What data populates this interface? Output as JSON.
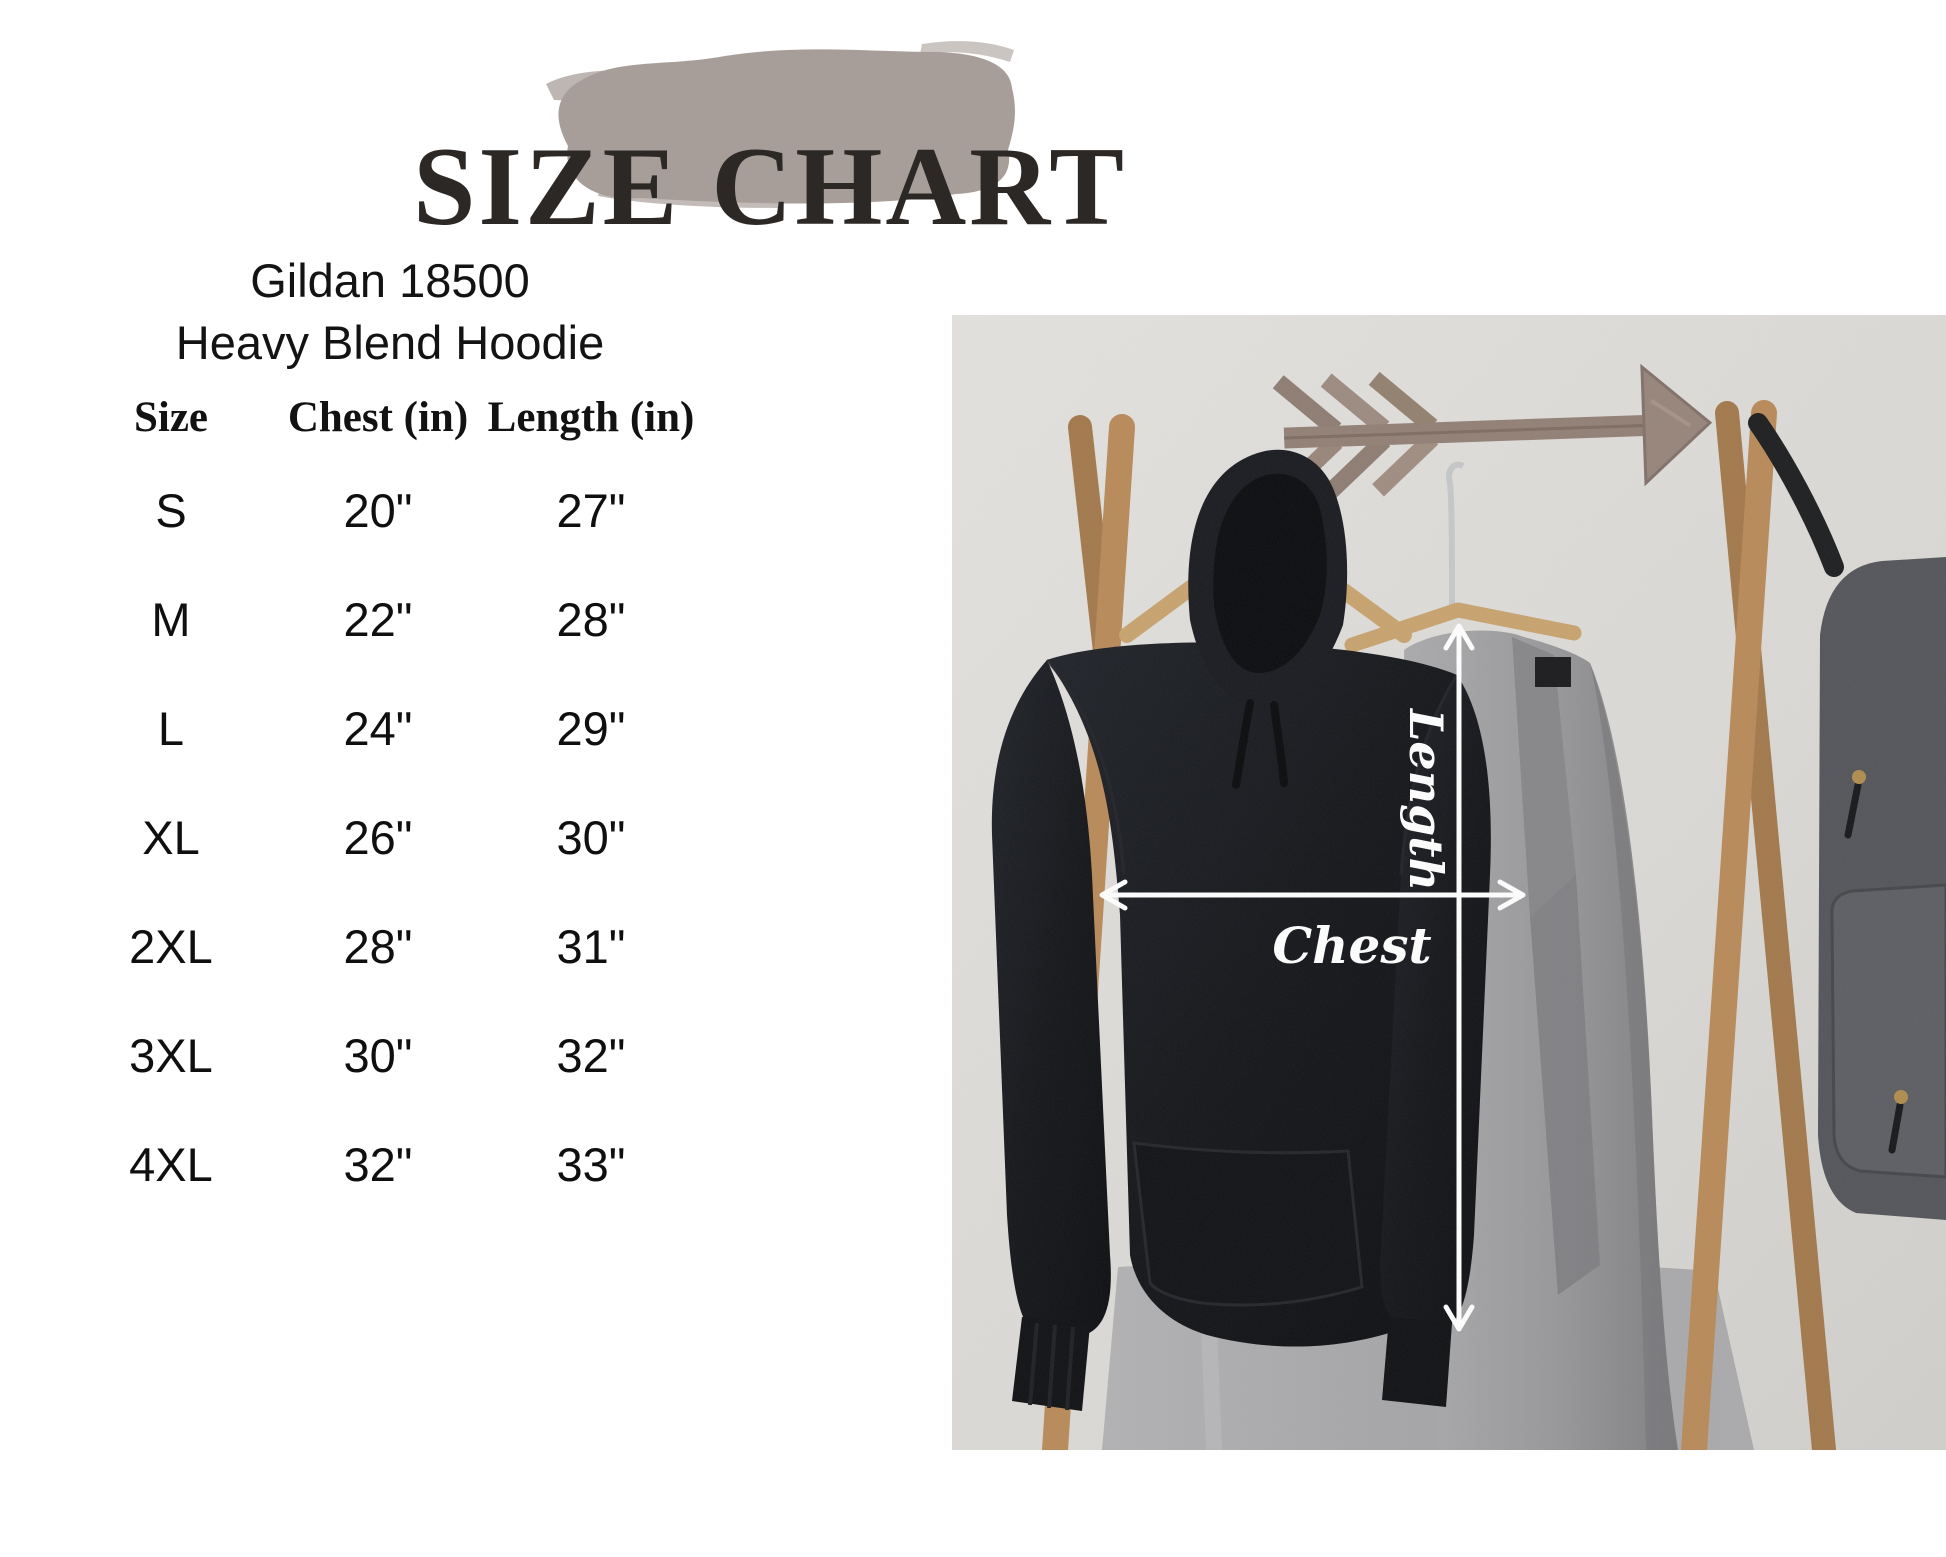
{
  "title": "SIZE CHART",
  "product": {
    "line1": "Gildan 18500",
    "line2": "Heavy Blend Hoodie"
  },
  "table": {
    "headers": [
      "Size",
      "Chest (in)",
      "Length (in)"
    ],
    "rows": [
      [
        "S",
        "20\"",
        "27\""
      ],
      [
        "M",
        "22\"",
        "28\""
      ],
      [
        "L",
        "24\"",
        "29\""
      ],
      [
        "XL",
        "26\"",
        "30\""
      ],
      [
        "2XL",
        "28\"",
        "31\""
      ],
      [
        "3XL",
        "30\"",
        "32\""
      ],
      [
        "4XL",
        "32\"",
        "33\""
      ]
    ]
  },
  "photo": {
    "length_label": "Length",
    "chest_label": "Chest"
  },
  "colors": {
    "brush_stroke": "#a89e99",
    "title_text": "#2b2826",
    "body_text": "#131313",
    "measure_arrows": "#ffffff",
    "wall": "#dcdad7",
    "wood_rack": "#b3824f",
    "hoodie": "#14161a",
    "coat": "#98989a"
  },
  "chart_data": {
    "type": "table",
    "title": "SIZE CHART",
    "subtitle": "Gildan 18500 Heavy Blend Hoodie",
    "columns": [
      "Size",
      "Chest (in)",
      "Length (in)"
    ],
    "units": "inches",
    "rows": [
      {
        "size": "S",
        "chest_in": 20,
        "length_in": 27
      },
      {
        "size": "M",
        "chest_in": 22,
        "length_in": 28
      },
      {
        "size": "L",
        "chest_in": 24,
        "length_in": 29
      },
      {
        "size": "XL",
        "chest_in": 26,
        "length_in": 30
      },
      {
        "size": "2XL",
        "chest_in": 28,
        "length_in": 31
      },
      {
        "size": "3XL",
        "chest_in": 30,
        "length_in": 32
      },
      {
        "size": "4XL",
        "chest_in": 32,
        "length_in": 33
      }
    ]
  }
}
